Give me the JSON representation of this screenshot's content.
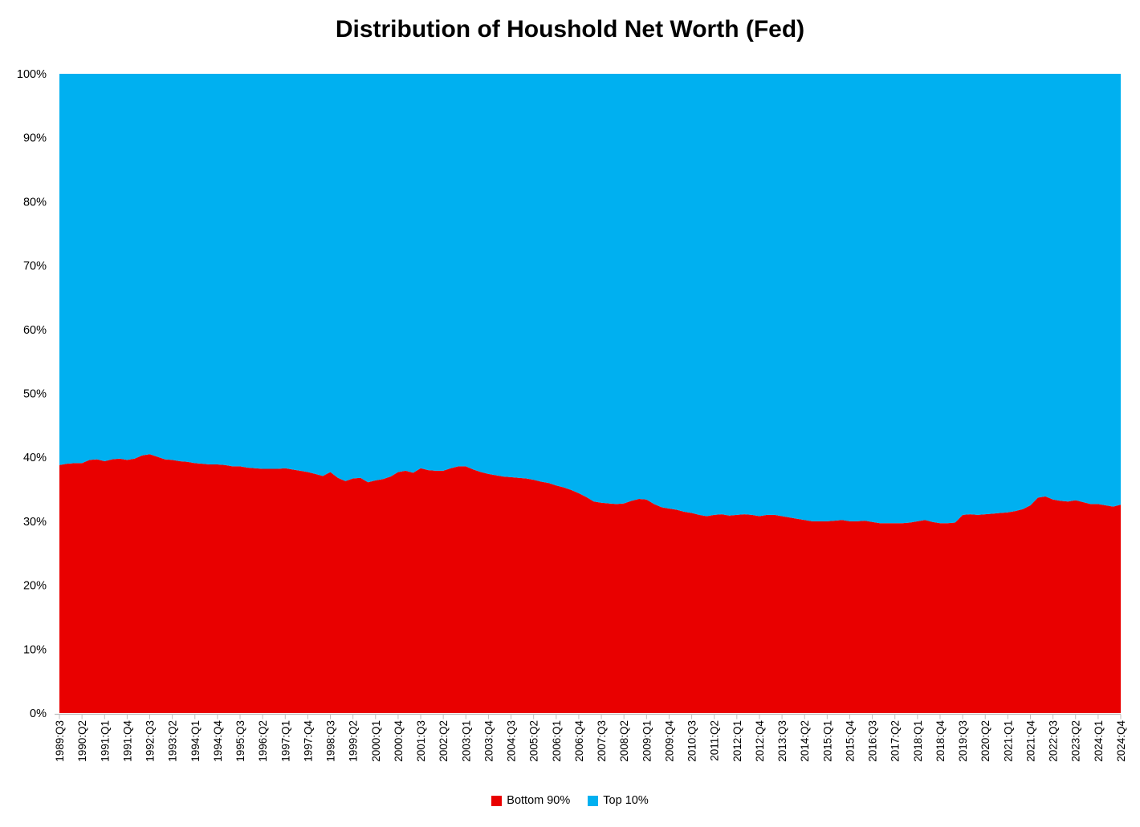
{
  "page": {
    "background": "#FFFFFF"
  },
  "chart": {
    "title": "Distribution of Houshold Net Worth (Fed)"
  },
  "chart_data": {
    "type": "area",
    "stacked": true,
    "percent_stacked": true,
    "title": "Distribution of Houshold Net Worth (Fed)",
    "x_frequency": "quarterly",
    "x_first": "1989:Q3",
    "x_last": "2024:Q4",
    "n_points": 142,
    "x_tick_every_n_points": 3,
    "x_tick_labels": [
      "1989:Q3",
      "1990:Q2",
      "1991:Q1",
      "1991:Q4",
      "1992:Q3",
      "1993:Q2",
      "1994:Q1",
      "1994:Q4",
      "1995:Q3",
      "1996:Q2",
      "1997:Q1",
      "1997:Q4",
      "1998:Q3",
      "1999:Q2",
      "2000:Q1",
      "2000:Q4",
      "2001:Q3",
      "2002:Q2",
      "2003:Q1",
      "2003:Q4",
      "2004:Q3",
      "2005:Q2",
      "2006:Q1",
      "2006:Q4",
      "2007:Q3",
      "2008:Q2",
      "2009:Q1",
      "2009:Q4",
      "2010:Q3",
      "2011:Q2",
      "2012:Q1",
      "2012:Q4",
      "2013:Q3",
      "2014:Q2",
      "2015:Q1",
      "2015:Q4",
      "2016:Q3",
      "2017:Q2",
      "2018:Q1",
      "2018:Q4",
      "2019:Q3",
      "2020:Q2",
      "2021:Q1",
      "2021:Q4",
      "2022:Q3",
      "2023:Q2",
      "2024:Q1",
      "2024:Q4"
    ],
    "y_tick_labels": [
      "0%",
      "10%",
      "20%",
      "30%",
      "40%",
      "50%",
      "60%",
      "70%",
      "80%",
      "90%",
      "100%"
    ],
    "ylim": [
      0,
      100
    ],
    "grid": false,
    "legend_position": "bottom",
    "axis_color": "#BFBFBF",
    "text_color": "#000000",
    "series": [
      {
        "name": "Bottom 90%",
        "color": "#E90000",
        "values": [
          38.8,
          39.0,
          39.1,
          39.1,
          39.6,
          39.7,
          39.4,
          39.7,
          39.8,
          39.6,
          39.8,
          40.3,
          40.5,
          40.1,
          39.7,
          39.6,
          39.4,
          39.3,
          39.1,
          39.0,
          38.9,
          38.9,
          38.8,
          38.6,
          38.6,
          38.4,
          38.3,
          38.2,
          38.2,
          38.2,
          38.3,
          38.1,
          37.9,
          37.7,
          37.4,
          37.1,
          37.7,
          36.8,
          36.3,
          36.7,
          36.8,
          36.1,
          36.4,
          36.6,
          37.0,
          37.7,
          37.9,
          37.6,
          38.3,
          38.0,
          37.9,
          37.9,
          38.3,
          38.6,
          38.6,
          38.1,
          37.7,
          37.4,
          37.2,
          37.0,
          36.9,
          36.8,
          36.7,
          36.5,
          36.2,
          36.0,
          35.6,
          35.3,
          34.9,
          34.4,
          33.8,
          33.1,
          32.9,
          32.8,
          32.7,
          32.8,
          33.2,
          33.5,
          33.4,
          32.7,
          32.2,
          32.0,
          31.8,
          31.5,
          31.3,
          31.0,
          30.8,
          31.0,
          31.1,
          30.9,
          31.0,
          31.1,
          31.0,
          30.8,
          31.0,
          31.0,
          30.8,
          30.6,
          30.4,
          30.2,
          30.0,
          30.0,
          30.0,
          30.1,
          30.2,
          30.0,
          30.0,
          30.1,
          29.9,
          29.7,
          29.7,
          29.7,
          29.7,
          29.8,
          30.0,
          30.2,
          29.9,
          29.7,
          29.7,
          29.8,
          31.0,
          31.1,
          31.0,
          31.1,
          31.2,
          31.3,
          31.4,
          31.6,
          31.9,
          32.5,
          33.7,
          33.9,
          33.4,
          33.2,
          33.1,
          33.3,
          33.0,
          32.7,
          32.7,
          32.5,
          32.3,
          32.6
        ]
      },
      {
        "name": "Top 10%",
        "color": "#00B0F0",
        "values": [
          61.2,
          61.0,
          60.9,
          60.9,
          60.4,
          60.3,
          60.6,
          60.3,
          60.2,
          60.4,
          60.2,
          59.7,
          59.5,
          59.9,
          60.3,
          60.4,
          60.6,
          60.7,
          60.9,
          61.0,
          61.1,
          61.1,
          61.2,
          61.4,
          61.4,
          61.6,
          61.7,
          61.8,
          61.8,
          61.8,
          61.7,
          61.9,
          62.1,
          62.3,
          62.6,
          62.9,
          62.3,
          63.2,
          63.7,
          63.3,
          63.2,
          63.9,
          63.6,
          63.4,
          63.0,
          62.3,
          62.1,
          62.4,
          61.7,
          62.0,
          62.1,
          62.1,
          61.7,
          61.4,
          61.4,
          61.9,
          62.3,
          62.6,
          62.8,
          63.0,
          63.1,
          63.2,
          63.3,
          63.5,
          63.8,
          64.0,
          64.4,
          64.7,
          65.1,
          65.6,
          66.2,
          66.9,
          67.1,
          67.2,
          67.3,
          67.2,
          66.8,
          66.5,
          66.6,
          67.3,
          67.8,
          68.0,
          68.2,
          68.5,
          68.7,
          69.0,
          69.2,
          69.0,
          68.9,
          69.1,
          69.0,
          68.9,
          69.0,
          69.2,
          69.0,
          69.0,
          69.2,
          69.4,
          69.6,
          69.8,
          70.0,
          70.0,
          70.0,
          69.9,
          69.8,
          70.0,
          70.0,
          69.9,
          70.1,
          70.3,
          70.3,
          70.3,
          70.3,
          70.2,
          70.0,
          69.8,
          70.1,
          70.3,
          70.3,
          70.2,
          69.0,
          68.9,
          69.0,
          68.9,
          68.8,
          68.7,
          68.6,
          68.4,
          68.1,
          67.5,
          66.3,
          66.1,
          66.6,
          66.8,
          66.9,
          66.7,
          67.0,
          67.3,
          67.3,
          67.5,
          67.7,
          67.4
        ]
      }
    ]
  }
}
